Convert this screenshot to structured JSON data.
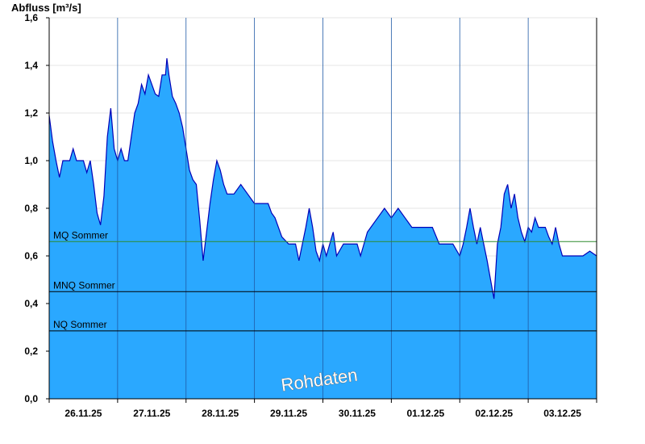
{
  "chart_data": {
    "type": "area",
    "ylabel": "Abfluss [m³/s]",
    "ylim": [
      0,
      1.6
    ],
    "yticks": [
      "0,0",
      "0,2",
      "0,4",
      "0,6",
      "0,8",
      "1,0",
      "1,2",
      "1,4",
      "1,6"
    ],
    "ytick_values": [
      0,
      0.2,
      0.4,
      0.6,
      0.8,
      1.0,
      1.2,
      1.4,
      1.6
    ],
    "xlim": [
      0,
      8
    ],
    "x_unit": "days from 26.11.25 00:00",
    "xtick_labels": [
      "26.11.25",
      "27.11.25",
      "28.11.25",
      "29.11.25",
      "30.11.25",
      "01.12.25",
      "02.12.25",
      "03.12.25"
    ],
    "grid": true,
    "reference_lines": [
      {
        "label": "MQ Sommer",
        "value": 0.66,
        "color": "#2e8b2e"
      },
      {
        "label": "MNQ Sommer",
        "value": 0.45,
        "color": "#000000"
      },
      {
        "label": "NQ Sommer",
        "value": 0.285,
        "color": "#000000"
      }
    ],
    "series": [
      {
        "fill_color": "#2aa8ff",
        "line_color": "#0000b8",
        "points": [
          [
            0.0,
            1.19
          ],
          [
            0.05,
            1.08
          ],
          [
            0.1,
            1.0
          ],
          [
            0.15,
            0.93
          ],
          [
            0.2,
            1.0
          ],
          [
            0.3,
            1.0
          ],
          [
            0.35,
            1.05
          ],
          [
            0.4,
            1.0
          ],
          [
            0.5,
            1.0
          ],
          [
            0.55,
            0.95
          ],
          [
            0.6,
            1.0
          ],
          [
            0.65,
            0.9
          ],
          [
            0.7,
            0.78
          ],
          [
            0.75,
            0.73
          ],
          [
            0.8,
            0.85
          ],
          [
            0.85,
            1.1
          ],
          [
            0.9,
            1.22
          ],
          [
            0.95,
            1.05
          ],
          [
            1.0,
            1.0
          ],
          [
            1.05,
            1.05
          ],
          [
            1.1,
            1.0
          ],
          [
            1.15,
            1.0
          ],
          [
            1.2,
            1.1
          ],
          [
            1.25,
            1.2
          ],
          [
            1.3,
            1.24
          ],
          [
            1.35,
            1.32
          ],
          [
            1.4,
            1.28
          ],
          [
            1.45,
            1.36
          ],
          [
            1.5,
            1.32
          ],
          [
            1.55,
            1.28
          ],
          [
            1.6,
            1.27
          ],
          [
            1.65,
            1.36
          ],
          [
            1.7,
            1.36
          ],
          [
            1.72,
            1.43
          ],
          [
            1.75,
            1.36
          ],
          [
            1.8,
            1.27
          ],
          [
            1.85,
            1.24
          ],
          [
            1.9,
            1.2
          ],
          [
            1.95,
            1.14
          ],
          [
            2.0,
            1.05
          ],
          [
            2.05,
            0.96
          ],
          [
            2.1,
            0.92
          ],
          [
            2.15,
            0.9
          ],
          [
            2.2,
            0.75
          ],
          [
            2.25,
            0.58
          ],
          [
            2.3,
            0.7
          ],
          [
            2.35,
            0.82
          ],
          [
            2.4,
            0.92
          ],
          [
            2.45,
            1.0
          ],
          [
            2.5,
            0.96
          ],
          [
            2.55,
            0.9
          ],
          [
            2.6,
            0.86
          ],
          [
            2.7,
            0.86
          ],
          [
            2.8,
            0.9
          ],
          [
            2.9,
            0.86
          ],
          [
            3.0,
            0.82
          ],
          [
            3.1,
            0.82
          ],
          [
            3.2,
            0.82
          ],
          [
            3.25,
            0.78
          ],
          [
            3.3,
            0.76
          ],
          [
            3.4,
            0.68
          ],
          [
            3.5,
            0.65
          ],
          [
            3.6,
            0.65
          ],
          [
            3.65,
            0.58
          ],
          [
            3.7,
            0.65
          ],
          [
            3.75,
            0.72
          ],
          [
            3.8,
            0.8
          ],
          [
            3.85,
            0.72
          ],
          [
            3.9,
            0.62
          ],
          [
            3.95,
            0.58
          ],
          [
            4.0,
            0.65
          ],
          [
            4.05,
            0.6
          ],
          [
            4.1,
            0.65
          ],
          [
            4.15,
            0.7
          ],
          [
            4.2,
            0.6
          ],
          [
            4.3,
            0.65
          ],
          [
            4.4,
            0.65
          ],
          [
            4.5,
            0.65
          ],
          [
            4.55,
            0.6
          ],
          [
            4.6,
            0.65
          ],
          [
            4.65,
            0.7
          ],
          [
            4.7,
            0.72
          ],
          [
            4.8,
            0.76
          ],
          [
            4.9,
            0.8
          ],
          [
            5.0,
            0.76
          ],
          [
            5.1,
            0.8
          ],
          [
            5.2,
            0.76
          ],
          [
            5.3,
            0.72
          ],
          [
            5.4,
            0.72
          ],
          [
            5.5,
            0.72
          ],
          [
            5.6,
            0.72
          ],
          [
            5.7,
            0.65
          ],
          [
            5.8,
            0.65
          ],
          [
            5.9,
            0.65
          ],
          [
            6.0,
            0.6
          ],
          [
            6.05,
            0.65
          ],
          [
            6.1,
            0.72
          ],
          [
            6.15,
            0.8
          ],
          [
            6.2,
            0.72
          ],
          [
            6.25,
            0.65
          ],
          [
            6.3,
            0.72
          ],
          [
            6.35,
            0.65
          ],
          [
            6.4,
            0.58
          ],
          [
            6.45,
            0.5
          ],
          [
            6.5,
            0.42
          ],
          [
            6.55,
            0.65
          ],
          [
            6.6,
            0.72
          ],
          [
            6.65,
            0.86
          ],
          [
            6.7,
            0.9
          ],
          [
            6.75,
            0.8
          ],
          [
            6.8,
            0.86
          ],
          [
            6.85,
            0.76
          ],
          [
            6.9,
            0.7
          ],
          [
            6.95,
            0.66
          ],
          [
            7.0,
            0.72
          ],
          [
            7.05,
            0.7
          ],
          [
            7.1,
            0.76
          ],
          [
            7.15,
            0.72
          ],
          [
            7.2,
            0.72
          ],
          [
            7.25,
            0.72
          ],
          [
            7.3,
            0.68
          ],
          [
            7.35,
            0.65
          ],
          [
            7.4,
            0.72
          ],
          [
            7.45,
            0.65
          ],
          [
            7.5,
            0.6
          ],
          [
            7.6,
            0.6
          ],
          [
            7.7,
            0.6
          ],
          [
            7.8,
            0.6
          ],
          [
            7.9,
            0.62
          ],
          [
            8.0,
            0.6
          ]
        ]
      }
    ],
    "watermark": "Rohdaten"
  }
}
